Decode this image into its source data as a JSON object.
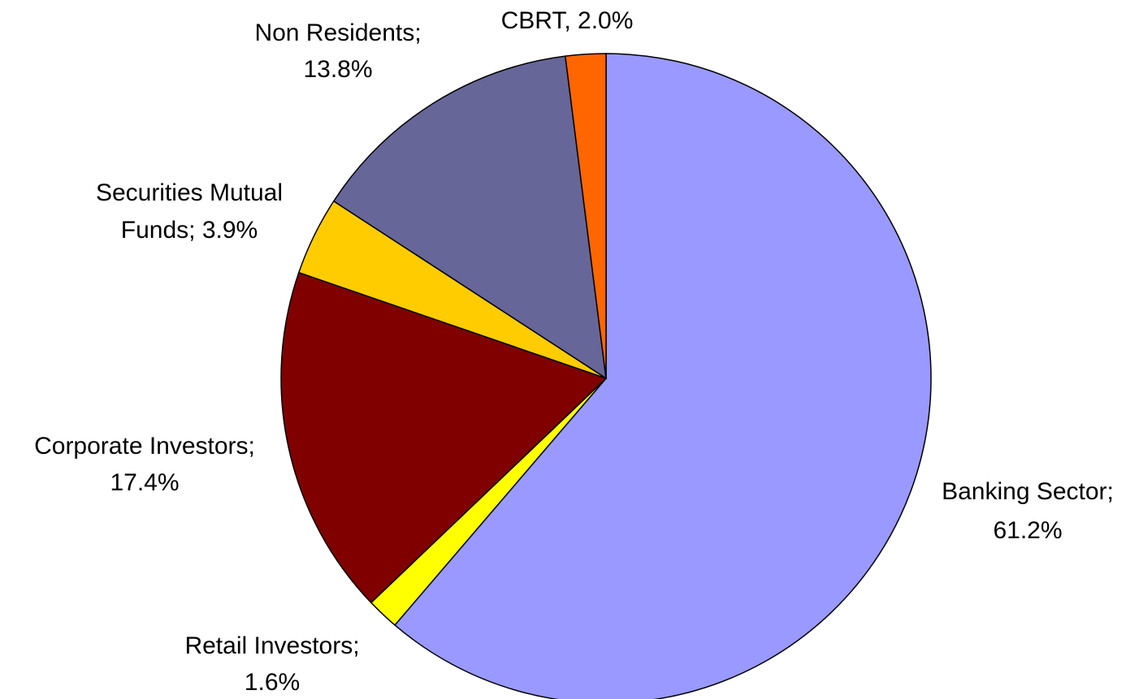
{
  "chart_data": {
    "type": "pie",
    "values": [
      61.2,
      1.6,
      17.4,
      3.9,
      13.8,
      2.0
    ],
    "value_labels": [
      [
        "Banking Sector;",
        "61.2%"
      ],
      [
        "Retail Investors;",
        "1.6%"
      ],
      [
        "Corporate Investors;",
        "17.4%"
      ],
      [
        "Securities Mutual",
        "Funds; 3.9%"
      ],
      [
        "Non Residents;",
        "13.8%"
      ],
      [
        "CBRT, 2.0%"
      ]
    ],
    "colors": [
      "#9999ff",
      "#ffff00",
      "#800000",
      "#ffcc00",
      "#666699",
      "#ff6600"
    ],
    "start_angle": 90,
    "direction": "clockwise"
  }
}
